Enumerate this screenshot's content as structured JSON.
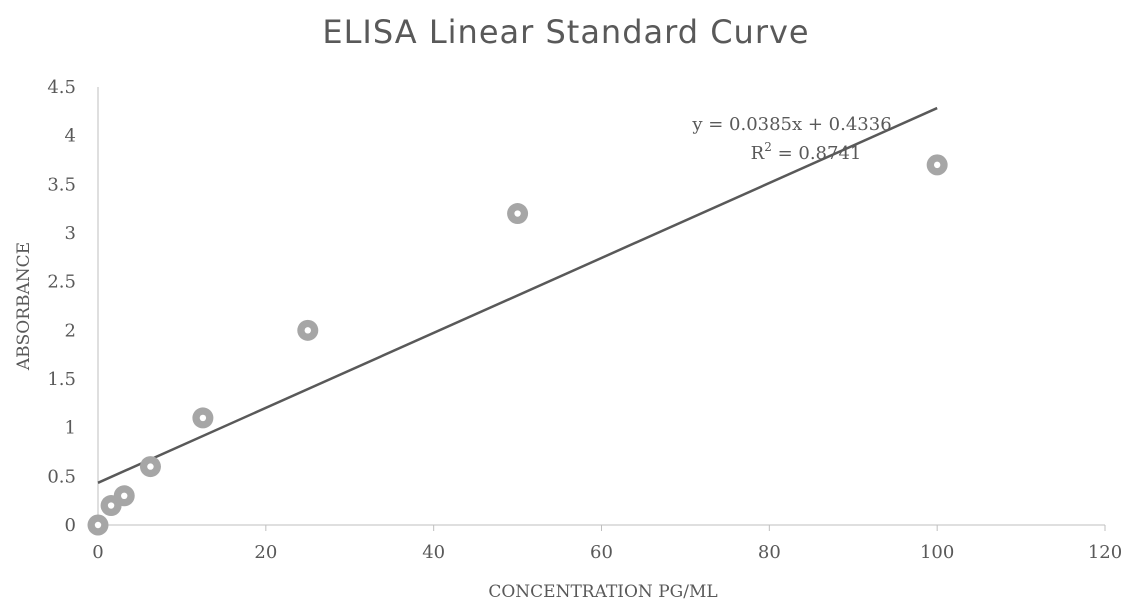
{
  "chart_data": {
    "type": "scatter",
    "title": "ELISA Linear Standard Curve",
    "xlabel": "CONCENTRATION PG/ML",
    "ylabel": "ABSORBANCE",
    "xlim": [
      0,
      120
    ],
    "ylim": [
      0,
      4.5
    ],
    "x_ticks": [
      "0",
      "20",
      "40",
      "60",
      "80",
      "100",
      "120"
    ],
    "y_ticks": [
      "0",
      "0.5",
      "1",
      "1.5",
      "2",
      "2.5",
      "3",
      "3.5",
      "4",
      "4.5"
    ],
    "grid": false,
    "series": [
      {
        "points": [
          {
            "x": 0,
            "y": 0
          },
          {
            "x": 1.56,
            "y": 0.2
          },
          {
            "x": 3.125,
            "y": 0.3
          },
          {
            "x": 6.25,
            "y": 0.6
          },
          {
            "x": 12.5,
            "y": 1.1
          },
          {
            "x": 25,
            "y": 2.0
          },
          {
            "x": 50,
            "y": 3.2
          },
          {
            "x": 100,
            "y": 3.7
          }
        ],
        "marker_color": "#a6a6a6"
      }
    ],
    "trendline": {
      "slope": 0.0385,
      "intercept": 0.4336,
      "x_range": [
        0,
        100
      ],
      "color": "#595959",
      "equation_label": "y = 0.0385x + 0.4336",
      "r2_prefix": "R",
      "r2_exponent": "2",
      "r2_value": " = 0.8741"
    }
  }
}
